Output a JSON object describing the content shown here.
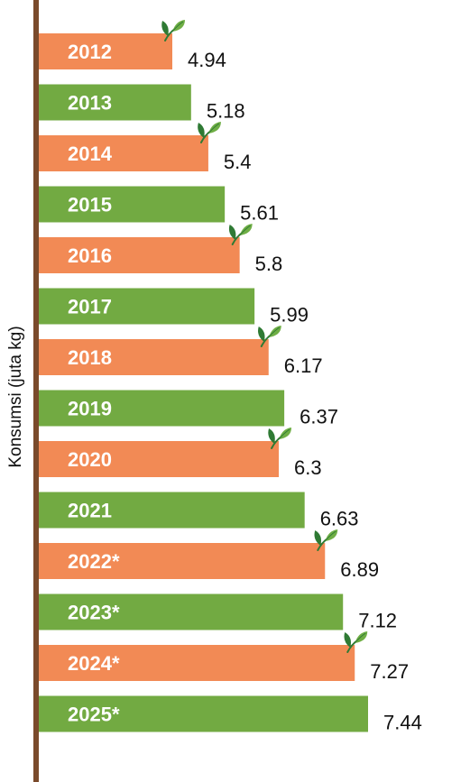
{
  "chart_data": {
    "type": "bar",
    "orientation": "horizontal",
    "title": "",
    "ylabel": "Konsumsi (juta kg)",
    "xlabel": "",
    "categories": [
      "2012",
      "2013",
      "2014",
      "2015",
      "2016",
      "2017",
      "2018",
      "2019",
      "2020",
      "2021",
      "2022*",
      "2023*",
      "2024*",
      "2025*"
    ],
    "values": [
      4.94,
      5.18,
      5.4,
      5.61,
      5.8,
      5.99,
      6.17,
      6.37,
      6.3,
      6.63,
      6.89,
      7.12,
      7.27,
      7.44
    ],
    "value_labels": [
      "4.94",
      "5.18",
      "5.4",
      "5.61",
      "5.8",
      "5.99",
      "6.17",
      "6.37",
      "6.3",
      "6.63",
      "6.89",
      "7.12",
      "7.27",
      "7.44"
    ],
    "grid": false,
    "legend": "none"
  },
  "colors": {
    "bar_orange": "#f28a55",
    "bar_green": "#72aa42",
    "axis": "#7a4a2b",
    "leaf_dark": "#2f7a34",
    "leaf_light": "#6fae45",
    "category_text": "#ffffff",
    "value_text": "#111111"
  },
  "icons": {
    "bar_decoration": "tea-leaf-icon"
  }
}
